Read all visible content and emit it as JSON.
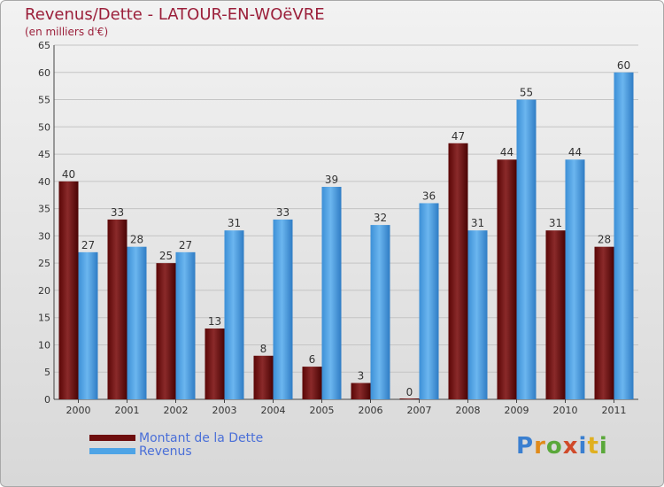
{
  "header": {
    "title": "Revenus/Dette - LATOUR-EN-WOëVRE",
    "subtitle": "(en milliers d'€)"
  },
  "colors": {
    "dette": "#6e0e0e",
    "revenus": "#4ea4e6",
    "grid": "#c4c4c4",
    "title": "#9b1f3a"
  },
  "legend": {
    "dette_label": "Montant de la Dette",
    "revenus_label": "Revenus"
  },
  "logo": {
    "text": "Proxiti"
  },
  "chart_data": {
    "type": "bar",
    "title": "Revenus/Dette - LATOUR-EN-WOëVRE",
    "subtitle": "(en milliers d'€)",
    "categories": [
      "2000",
      "2001",
      "2002",
      "2003",
      "2004",
      "2005",
      "2006",
      "2007",
      "2008",
      "2009",
      "2010",
      "2011"
    ],
    "series": [
      {
        "name": "Montant de la Dette",
        "values": [
          40,
          33,
          25,
          13,
          8,
          6,
          3,
          0,
          47,
          44,
          31,
          28
        ]
      },
      {
        "name": "Revenus",
        "values": [
          27,
          28,
          27,
          31,
          33,
          39,
          32,
          36,
          31,
          55,
          44,
          60
        ]
      }
    ],
    "ylim": [
      0,
      65
    ],
    "yticks": [
      0,
      5,
      10,
      15,
      20,
      25,
      30,
      35,
      40,
      45,
      50,
      55,
      60,
      65
    ],
    "grid": true,
    "legend_position": "bottom-left"
  }
}
